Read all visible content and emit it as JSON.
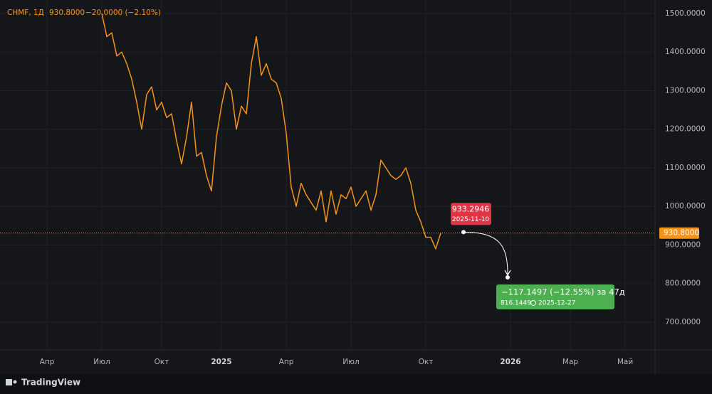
{
  "chart_data": {
    "type": "line",
    "header": {
      "symbol": "CHMF, 1Д",
      "last": "930.8000",
      "change": "−20.0000 (−2.10%)"
    },
    "categories": [
      null,
      null,
      null,
      null,
      null,
      null,
      null,
      null,
      "Апр",
      null,
      null,
      null,
      null,
      null,
      null,
      null,
      null,
      null,
      null,
      "Июл",
      null,
      null,
      null,
      null,
      null,
      null,
      null,
      null,
      null,
      null,
      null,
      "Окт",
      null,
      null,
      null,
      null,
      null,
      null,
      null,
      null,
      null,
      null,
      null,
      "2025",
      null,
      null,
      null,
      null,
      null,
      null,
      null,
      null,
      null,
      null,
      null,
      null,
      "Апр",
      null,
      null,
      null,
      null,
      null,
      null,
      null,
      null,
      null,
      null,
      null,
      null,
      "Июл",
      null,
      null,
      null,
      null,
      null,
      null,
      null,
      null,
      null,
      null,
      null,
      null,
      null,
      null,
      "Окт",
      null,
      null,
      null,
      null,
      null,
      null,
      null,
      null,
      null,
      null,
      null,
      null,
      null,
      null,
      null,
      null,
      "2026",
      null,
      null,
      null,
      null,
      null,
      null,
      null,
      null,
      null,
      null,
      null,
      "Мар",
      null,
      null,
      null,
      null,
      null,
      null,
      null,
      null,
      null,
      null,
      "Май",
      null,
      null,
      null,
      null,
      null
    ],
    "series": [
      {
        "name": "CHMF",
        "color": "#f7931a",
        "values": [
          null,
          null,
          null,
          null,
          null,
          null,
          null,
          null,
          null,
          null,
          null,
          null,
          null,
          null,
          null,
          null,
          null,
          null,
          null,
          1500,
          1440,
          1450,
          1390,
          1400,
          1370,
          1330,
          1270,
          1200,
          1290,
          1310,
          1250,
          1270,
          1230,
          1240,
          1170,
          1110,
          1180,
          1270,
          1130,
          1140,
          1080,
          1040,
          1180,
          1260,
          1320,
          1300,
          1200,
          1260,
          1240,
          1370,
          1440,
          1340,
          1370,
          1330,
          1320,
          1280,
          1190,
          1050,
          1000,
          1060,
          1030,
          1010,
          990,
          1040,
          960,
          1040,
          980,
          1030,
          1020,
          1050,
          1000,
          1020,
          1040,
          990,
          1030,
          1120,
          1100,
          1080,
          1070,
          1080,
          1100,
          1060,
          990,
          960,
          920,
          920,
          890,
          930.8,
          null,
          null,
          null,
          null,
          null,
          null,
          null,
          null,
          null,
          null,
          null,
          null,
          null,
          null,
          null,
          null,
          null,
          null,
          null,
          null,
          null,
          null,
          null,
          null,
          null,
          null,
          null,
          null,
          null,
          null,
          null,
          null,
          null,
          null,
          null,
          null,
          null,
          null,
          null,
          null,
          null,
          null
        ]
      }
    ],
    "ylim": [
      628,
      1535
    ],
    "yticks": [
      {
        "value": 700,
        "label": "700.0000"
      },
      {
        "value": 800,
        "label": "800.0000"
      },
      {
        "value": 900,
        "label": "900.0000"
      },
      {
        "value": 1000,
        "label": "1000.0000"
      },
      {
        "value": 1100,
        "label": "1100.0000"
      },
      {
        "value": 1200,
        "label": "1200.0000"
      },
      {
        "value": 1300,
        "label": "1300.0000"
      },
      {
        "value": 1400,
        "label": "1400.0000"
      },
      {
        "value": 1500,
        "label": "1500.0000"
      }
    ],
    "grid": true,
    "last_price": {
      "value": 930.8,
      "label": "930.8000",
      "color": "#f7931a"
    },
    "forecast": {
      "start": {
        "value": 933.2946,
        "label": "933.2946",
        "date": "2025-11-10"
      },
      "target": {
        "value": 816.1449,
        "label": "816.1449",
        "date": "2025-12-27"
      },
      "change": "−117.1497 (−12.55%) за 47д"
    },
    "watermark": "TradingView"
  }
}
